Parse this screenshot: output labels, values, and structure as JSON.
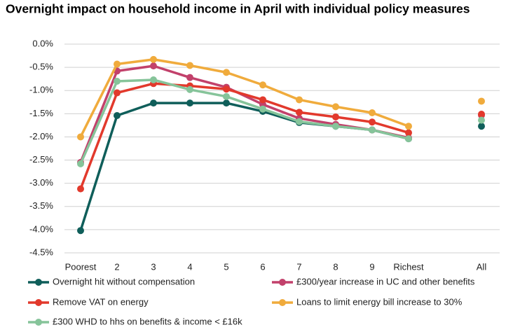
{
  "chart_data": {
    "type": "line",
    "title": "Overnight impact on household income in April with individual policy measures",
    "categories": [
      "Poorest",
      "2",
      "3",
      "4",
      "5",
      "6",
      "7",
      "8",
      "9",
      "Richest",
      null,
      "All"
    ],
    "series": [
      {
        "name": "Overnight hit without compensation",
        "color": "#0f5e5a",
        "values": [
          -4.02,
          -1.54,
          -1.27,
          -1.27,
          -1.27,
          -1.45,
          -1.69,
          -1.77,
          -1.85,
          -2.04,
          null,
          -1.77
        ]
      },
      {
        "name": "£300/year increase in UC and other benefits",
        "color": "#c2416b",
        "values": [
          -2.55,
          -0.58,
          -0.47,
          -0.72,
          -0.93,
          -1.3,
          -1.6,
          -1.73,
          -1.85,
          -2.02,
          null,
          -1.53
        ]
      },
      {
        "name": "Remove VAT on energy",
        "color": "#e2392c",
        "values": [
          -3.12,
          -1.05,
          -0.85,
          -0.9,
          -0.97,
          -1.2,
          -1.47,
          -1.57,
          -1.68,
          -1.91,
          null,
          -1.51
        ]
      },
      {
        "name": "Loans to limit energy bill increase to 30%",
        "color": "#f0ab3c",
        "values": [
          -2.0,
          -0.43,
          -0.33,
          -0.46,
          -0.61,
          -0.88,
          -1.2,
          -1.35,
          -1.48,
          -1.77,
          null,
          -1.23
        ]
      },
      {
        "name": "£300 WHD to hhs on benefits & income < £16k",
        "color": "#86c49a",
        "values": [
          -2.58,
          -0.8,
          -0.77,
          -0.98,
          -1.13,
          -1.4,
          -1.67,
          -1.77,
          -1.85,
          -2.04,
          null,
          -1.64
        ]
      }
    ],
    "ylim": [
      -4.5,
      0
    ],
    "yticks": [
      {
        "value": 0,
        "label": "0.0%"
      },
      {
        "value": -0.5,
        "label": "-0.5%"
      },
      {
        "value": -1,
        "label": "-1.0%"
      },
      {
        "value": -1.5,
        "label": "-1.5%"
      },
      {
        "value": -2,
        "label": "-2.0%"
      },
      {
        "value": -2.5,
        "label": "-2.5%"
      },
      {
        "value": -3,
        "label": "-3.0%"
      },
      {
        "value": -3.5,
        "label": "-3.5%"
      },
      {
        "value": -4,
        "label": "-4.0%"
      },
      {
        "value": -4.5,
        "label": "-4.5%"
      }
    ],
    "grid": true
  }
}
